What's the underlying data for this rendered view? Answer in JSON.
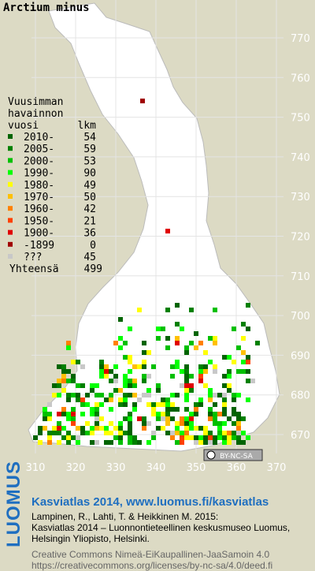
{
  "title": "Arctium minus",
  "legend": {
    "heading": [
      "Vuusimman",
      "havainnon",
      "vuosi"
    ],
    "count_heading": "lkm",
    "items": [
      {
        "label": "2010-",
        "count": 54,
        "color": "#006400"
      },
      {
        "label": "2005-",
        "count": 59,
        "color": "#008000"
      },
      {
        "label": "2000-",
        "count": 53,
        "color": "#00c000"
      },
      {
        "label": "1990-",
        "count": 90,
        "color": "#00ff00"
      },
      {
        "label": "1980-",
        "count": 49,
        "color": "#ffff00"
      },
      {
        "label": "1970-",
        "count": 50,
        "color": "#ffc000"
      },
      {
        "label": "1960-",
        "count": 42,
        "color": "#ff8000"
      },
      {
        "label": "1950-",
        "count": 21,
        "color": "#ff4000"
      },
      {
        "label": "1900-",
        "count": 36,
        "color": "#e00000"
      },
      {
        "label": "-1899",
        "count": 0,
        "color": "#a00000"
      },
      {
        "label": "???",
        "count": 45,
        "color": "#c8c8c8"
      }
    ],
    "total_label": "Yhteensä",
    "total": 499
  },
  "map": {
    "y_labels": [
      770,
      760,
      750,
      740,
      730,
      720,
      710,
      700,
      690,
      680,
      670
    ],
    "x_labels": [
      310,
      320,
      330,
      340,
      350,
      360,
      370
    ]
  },
  "license": "BY-NC-SA",
  "brand": "LUOMUS",
  "footer": {
    "link": "Kasviatlas 2014, www.luomus.fi/kasviatlas",
    "lines": [
      "Lampinen, R., Lahti, T. & Heikkinen M. 2015:",
      "Kasviatlas 2014 – Luonnontieteellinen keskusmuseo Luomus,",
      "Helsingin Yliopisto, Helsinki."
    ],
    "cc_lines": [
      "Creative Commons Nimeä-EiKaupallinen-JaaSamoin 4.0",
      "https://creativecommons.org/licenses/by-nc-sa/4.0/deed.fi"
    ]
  }
}
